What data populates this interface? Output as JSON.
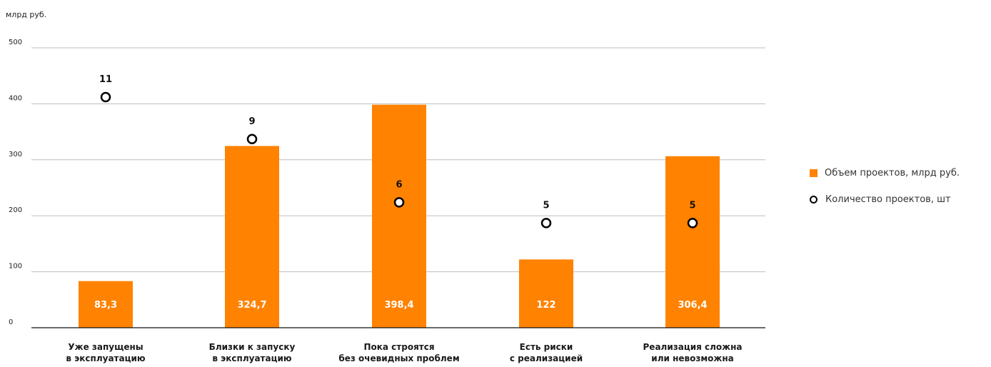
{
  "chart_data": {
    "type": "bar",
    "y_unit_label": "млрд руб.",
    "ylim": [
      0,
      500
    ],
    "yticks": [
      0,
      100,
      200,
      300,
      400,
      500
    ],
    "grid": true,
    "legend_position": "right",
    "categories": [
      [
        "Уже запущены",
        "в эксплуатацию"
      ],
      [
        "Близки к запуску",
        "в эксплуатацию"
      ],
      [
        "Пока строятся",
        "без очевидных проблем"
      ],
      [
        "Есть риски",
        "с реализацией"
      ],
      [
        "Реализация сложна",
        "или невозможна"
      ]
    ],
    "series": [
      {
        "name": "Объем проектов, млрд руб.",
        "type": "bar",
        "color": "#FF8200",
        "values": [
          83.3,
          324.7,
          398.4,
          122,
          306.4
        ],
        "labels": [
          "83,3",
          "324,7",
          "398,4",
          "122",
          "306,4"
        ]
      },
      {
        "name": "Количество проектов, шт",
        "type": "scatter",
        "color": "#000000",
        "values": [
          11,
          9,
          6,
          5,
          5
        ],
        "plot_positions_y": [
          412,
          337,
          224,
          187,
          187
        ],
        "labels": [
          "11",
          "9",
          "6",
          "5",
          "5"
        ]
      }
    ]
  }
}
